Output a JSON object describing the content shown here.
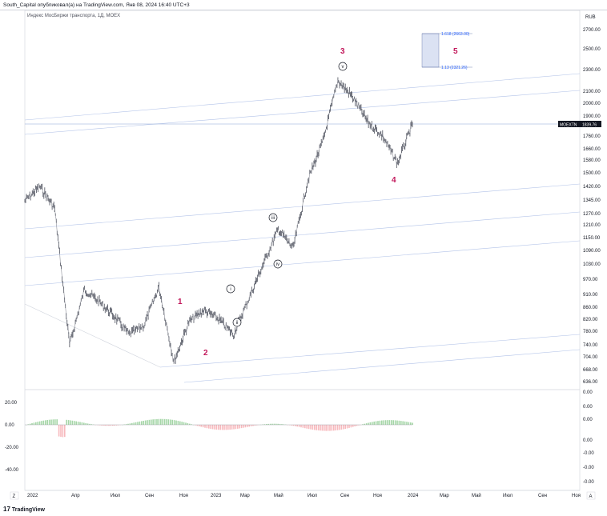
{
  "header": {
    "publish_line": "South_Capital опубликовал(а) на TradingView.com, Янв 08, 2024 16:40 UTC+3"
  },
  "chart": {
    "symbol_line": "Индекс МосБиржи транспорта, 1Д, MOEX",
    "currency": "RUB",
    "price_tag_symbol": "MOEXTN",
    "price_tag_value": "1839.76",
    "fib_upper": "1.618 (2663.00)",
    "fib_lower": "1.13 (2321.26)",
    "zoom_button": "Z",
    "auto_button": "A"
  },
  "footer": {
    "brand": "TradingView"
  },
  "chart_data": {
    "type": "line",
    "y_ticks": [
      "2700.00",
      "2500.00",
      "2300.00",
      "2100.00",
      "2000.00",
      "1900.00",
      "1760.00",
      "1660.00",
      "1580.00",
      "1500.00",
      "1420.00",
      "1345.00",
      "1270.00",
      "1210.00",
      "1150.00",
      "1090.00",
      "1030.00",
      "970.00",
      "910.00",
      "860.00",
      "820.00",
      "780.00",
      "740.00",
      "704.00",
      "668.00",
      "636.00"
    ],
    "x_ticks": [
      "2022",
      "Апр",
      "Июл",
      "Сен",
      "Ноя",
      "2023",
      "Мар",
      "Май",
      "Июл",
      "Сен",
      "Ноя",
      "2024",
      "Мар",
      "Май",
      "Июл",
      "Сен",
      "Ноя"
    ],
    "wave_labels": [
      "1",
      "2",
      "3",
      "4",
      "5"
    ],
    "sub_wave_labels": [
      "i",
      "ii",
      "iii",
      "iv",
      "v"
    ],
    "last_price": 1839.76,
    "series": [
      {
        "x": [
          "2022-01",
          "2022-02",
          "2022-02",
          "2022-03",
          "2022-04",
          "2022-05",
          "2022-06",
          "2022-07",
          "2022-08",
          "2022-09",
          "2022-10",
          "2022-10",
          "2022-11",
          "2022-12",
          "2023-01",
          "2023-02",
          "2023-03",
          "2023-04",
          "2023-05",
          "2023-06",
          "2023-07",
          "2023-08",
          "2023-09",
          "2023-10",
          "2023-11",
          "2023-12",
          "2024-01"
        ],
        "values": [
          1340,
          1420,
          1300,
          740,
          930,
          880,
          830,
          770,
          800,
          940,
          690,
          810,
          850,
          820,
          770,
          890,
          1030,
          1190,
          1100,
          1460,
          1720,
          2200,
          2050,
          1860,
          1760,
          1560,
          1840
        ]
      }
    ],
    "oscillator": {
      "left_ticks": [
        "20.00",
        "0.00",
        "-20.00",
        "-40.00"
      ],
      "right_ticks": [
        "0.00",
        "0.00",
        "0.00",
        "0.00",
        "-0.00",
        "-0.00",
        "-0.00"
      ]
    }
  }
}
